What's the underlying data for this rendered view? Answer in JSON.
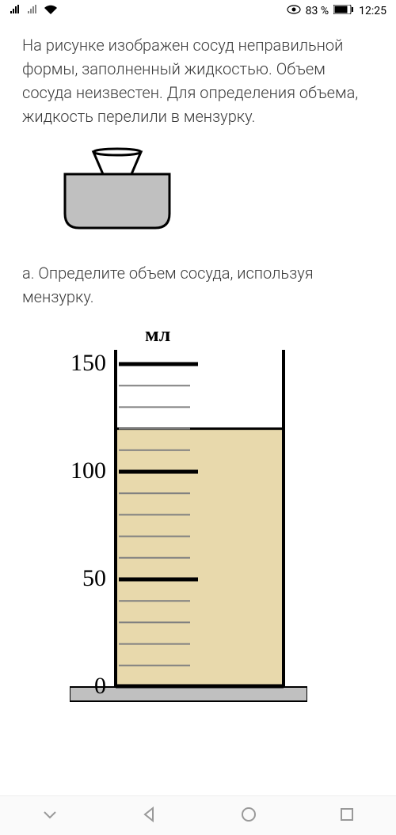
{
  "status": {
    "battery_pct": "83 %",
    "time": "12:25"
  },
  "problem": {
    "text": "На рисунке изображен сосуд неправильной формы, заполненный жидкостью. Объем сосуда неизвестен. Для определения объема, жидкость перелили в мензурку.",
    "question": "a. Определите объем сосуда, используя мензурку."
  },
  "vessel": {
    "fill_color": "#c0c0c0",
    "outline_color": "#000000"
  },
  "cylinder": {
    "unit_label": "мл",
    "liquid_level": 120,
    "liquid_color": "#e8d9ac",
    "outline_color": "#000000",
    "minor_tick_color": "#808080",
    "background_color": "#ffffff",
    "scale_max": 150,
    "major_ticks": [
      {
        "value": 150,
        "label": "150"
      },
      {
        "value": 100,
        "label": "100"
      },
      {
        "value": 50,
        "label": "50"
      },
      {
        "value": 0,
        "label": "0"
      }
    ],
    "minor_step": 10,
    "base_color": "#c0c0c0"
  }
}
